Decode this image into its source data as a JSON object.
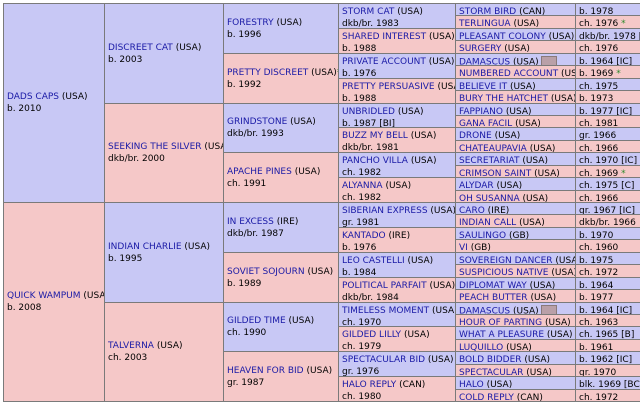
{
  "pedigree": {
    "gen1": [
      {
        "name": "DADS CAPS",
        "country": "(USA)",
        "info": "b. 2010",
        "sex": "male"
      },
      {
        "name": "QUICK WAMPUM",
        "country": "(USA)",
        "info": "b. 2008",
        "sex": "female"
      }
    ],
    "gen2": [
      {
        "name": "DISCREET CAT",
        "country": "(USA)",
        "info": "b. 2003",
        "sex": "male"
      },
      {
        "name": "SEEKING THE SILVER",
        "country": "(USA)",
        "info": "dkb/br. 2000",
        "sex": "female"
      },
      {
        "name": "INDIAN CHARLIE",
        "country": "(USA)",
        "info": "b. 1995",
        "sex": "male"
      },
      {
        "name": "TALVERNA",
        "country": "(USA)",
        "info": "ch. 2003",
        "sex": "female"
      }
    ],
    "gen3": [
      {
        "name": "FORESTRY",
        "country": "(USA)",
        "info": "b. 1996",
        "sex": "male",
        "star": ""
      },
      {
        "name": "PRETTY DISCREET",
        "country": "(USA)",
        "info": "b. 1992",
        "sex": "female",
        "star": "*"
      },
      {
        "name": "GRINDSTONE",
        "country": "(USA)",
        "info": "dkb/br. 1993",
        "sex": "male",
        "star": ""
      },
      {
        "name": "APACHE PINES",
        "country": "(USA)",
        "info": "ch. 1991",
        "sex": "female",
        "star": ""
      },
      {
        "name": "IN EXCESS",
        "country": "(IRE)",
        "info": "dkb/br. 1987",
        "sex": "male",
        "star": ""
      },
      {
        "name": "SOVIET SOJOURN",
        "country": "(USA)",
        "info": "b. 1989",
        "sex": "female",
        "star": ""
      },
      {
        "name": "GILDED TIME",
        "country": "(USA)",
        "info": "ch. 1990",
        "sex": "male",
        "star": ""
      },
      {
        "name": "HEAVEN FOR BID",
        "country": "(USA)",
        "info": "gr. 1987",
        "sex": "female",
        "star": ""
      }
    ],
    "gen4": [
      {
        "name": "STORM CAT",
        "country": "(USA)",
        "info": "dkb/br. 1983",
        "sex": "male"
      },
      {
        "name": "SHARED INTEREST",
        "country": "(USA)",
        "info": "b. 1988",
        "sex": "female"
      },
      {
        "name": "PRIVATE ACCOUNT",
        "country": "(USA)",
        "info": "b. 1976",
        "sex": "male"
      },
      {
        "name": "PRETTY PERSUASIVE",
        "country": "(USA)",
        "info": "b. 1988",
        "sex": "female"
      },
      {
        "name": "UNBRIDLED",
        "country": "(USA)",
        "info": "b. 1987 [BI]",
        "sex": "male"
      },
      {
        "name": "BUZZ MY BELL",
        "country": "(USA)",
        "info": "dkb/br. 1981",
        "sex": "female"
      },
      {
        "name": "PANCHO VILLA",
        "country": "(USA)",
        "info": "ch. 1982",
        "sex": "male"
      },
      {
        "name": "ALYANNA",
        "country": "(USA)",
        "info": "ch. 1982",
        "sex": "female"
      },
      {
        "name": "SIBERIAN EXPRESS",
        "country": "(USA)",
        "info": "gr. 1981",
        "sex": "male"
      },
      {
        "name": "KANTADO",
        "country": "(IRE)",
        "info": "b. 1976",
        "sex": "female"
      },
      {
        "name": "LEO CASTELLI",
        "country": "(USA)",
        "info": "b. 1984",
        "sex": "male"
      },
      {
        "name": "POLITICAL PARFAIT",
        "country": "(USA)",
        "info": "dkb/br. 1984",
        "sex": "female"
      },
      {
        "name": "TIMELESS MOMENT",
        "country": "(USA)",
        "info": "ch. 1970",
        "sex": "male"
      },
      {
        "name": "GILDED LILLY",
        "country": "(USA)",
        "info": "ch. 1979",
        "sex": "female"
      },
      {
        "name": "SPECTACULAR BID",
        "country": "(USA)",
        "info": "gr. 1976",
        "sex": "male"
      },
      {
        "name": "HALO REPLY",
        "country": "(CAN)",
        "info": "ch. 1980",
        "sex": "female"
      }
    ],
    "gen5": [
      {
        "name": "STORM BIRD",
        "country": "(CAN)",
        "info": "b. 1978",
        "sex": "male",
        "star": "",
        "box": false
      },
      {
        "name": "TERLINGUA",
        "country": "(USA)",
        "info": "ch. 1976",
        "sex": "female",
        "star": "*",
        "box": false
      },
      {
        "name": "PLEASANT COLONY",
        "country": "(USA)",
        "info": "dkb/br. 1978 [I]",
        "sex": "male",
        "star": "",
        "box": false
      },
      {
        "name": "SURGERY",
        "country": "(USA)",
        "info": "ch. 1976",
        "sex": "female",
        "star": "",
        "box": false
      },
      {
        "name": "DAMASCUS",
        "country": "(USA)",
        "info": "b. 1964 [IC]",
        "sex": "male",
        "star": "",
        "box": true
      },
      {
        "name": "NUMBERED ACCOUNT",
        "country": "(USA)",
        "info": "b. 1969",
        "sex": "female",
        "star": "*",
        "box": false
      },
      {
        "name": "BELIEVE IT",
        "country": "(USA)",
        "info": "ch. 1975",
        "sex": "male",
        "star": "",
        "box": false
      },
      {
        "name": "BURY THE HATCHET",
        "country": "(USA)",
        "info": "b. 1973",
        "sex": "female",
        "star": "",
        "box": false
      },
      {
        "name": "FAPPIANO",
        "country": "(USA)",
        "info": "b. 1977 [IC]",
        "sex": "male",
        "star": "",
        "box": false
      },
      {
        "name": "GANA FACIL",
        "country": "(USA)",
        "info": "ch. 1981",
        "sex": "female",
        "star": "",
        "box": false
      },
      {
        "name": "DRONE",
        "country": "(USA)",
        "info": "gr. 1966",
        "sex": "male",
        "star": "",
        "box": false
      },
      {
        "name": "CHATEAUPAVIA",
        "country": "(USA)",
        "info": "ch. 1966",
        "sex": "female",
        "star": "",
        "box": false
      },
      {
        "name": "SECRETARIAT",
        "country": "(USA)",
        "info": "ch. 1970 [IC]",
        "sex": "male",
        "star": "",
        "box": false
      },
      {
        "name": "CRIMSON SAINT",
        "country": "(USA)",
        "info": "ch. 1969",
        "sex": "female",
        "star": "*",
        "box": false
      },
      {
        "name": "ALYDAR",
        "country": "(USA)",
        "info": "ch. 1975 [C]",
        "sex": "male",
        "star": "",
        "box": false
      },
      {
        "name": "OH SUSANNA",
        "country": "(USA)",
        "info": "ch. 1966",
        "sex": "female",
        "star": "",
        "box": false
      },
      {
        "name": "CARO",
        "country": "(IRE)",
        "info": "gr. 1967 [IC]",
        "sex": "male",
        "star": "",
        "box": false
      },
      {
        "name": "INDIAN CALL",
        "country": "(USA)",
        "info": "dkb/br. 1966",
        "sex": "female",
        "star": "",
        "box": false
      },
      {
        "name": "SAULINGO",
        "country": "(GB)",
        "info": "b. 1970",
        "sex": "male",
        "star": "",
        "box": false
      },
      {
        "name": "VI",
        "country": "(GB)",
        "info": "ch. 1960",
        "sex": "female",
        "star": "",
        "box": false
      },
      {
        "name": "SOVEREIGN DANCER",
        "country": "(USA)",
        "info": "b. 1975",
        "sex": "male",
        "star": "",
        "box": false
      },
      {
        "name": "SUSPICIOUS NATIVE",
        "country": "(USA)",
        "info": "ch. 1972",
        "sex": "female",
        "star": "",
        "box": false
      },
      {
        "name": "DIPLOMAT WAY",
        "country": "(USA)",
        "info": "b. 1964",
        "sex": "male",
        "star": "",
        "box": false
      },
      {
        "name": "PEACH BUTTER",
        "country": "(USA)",
        "info": "b. 1977",
        "sex": "female",
        "star": "",
        "box": false
      },
      {
        "name": "DAMASCUS",
        "country": "(USA)",
        "info": "b. 1964 [IC]",
        "sex": "male",
        "star": "",
        "box": true
      },
      {
        "name": "HOUR OF PARTING",
        "country": "(USA)",
        "info": "ch. 1963",
        "sex": "female",
        "star": "",
        "box": false
      },
      {
        "name": "WHAT A PLEASURE",
        "country": "(USA)",
        "info": "ch. 1965 [B]",
        "sex": "male",
        "star": "",
        "box": false
      },
      {
        "name": "LUQUILLO",
        "country": "(USA)",
        "info": "b. 1961",
        "sex": "female",
        "star": "",
        "box": false
      },
      {
        "name": "BOLD BIDDER",
        "country": "(USA)",
        "info": "b. 1962 [IC]",
        "sex": "male",
        "star": "",
        "box": false
      },
      {
        "name": "SPECTACULAR",
        "country": "(USA)",
        "info": "gr. 1970",
        "sex": "female",
        "star": "",
        "box": false
      },
      {
        "name": "HALO",
        "country": "(USA)",
        "info": "blk. 1969 [BC]",
        "sex": "male",
        "star": "",
        "box": false
      },
      {
        "name": "COLD REPLY",
        "country": "(CAN)",
        "info": "ch. 1972",
        "sex": "female",
        "star": "",
        "box": false
      }
    ]
  },
  "colors": {
    "male": "#c8c8f5",
    "female": "#f5c8c8",
    "link": "#1a1aa6",
    "star": "#2a8a2a"
  }
}
